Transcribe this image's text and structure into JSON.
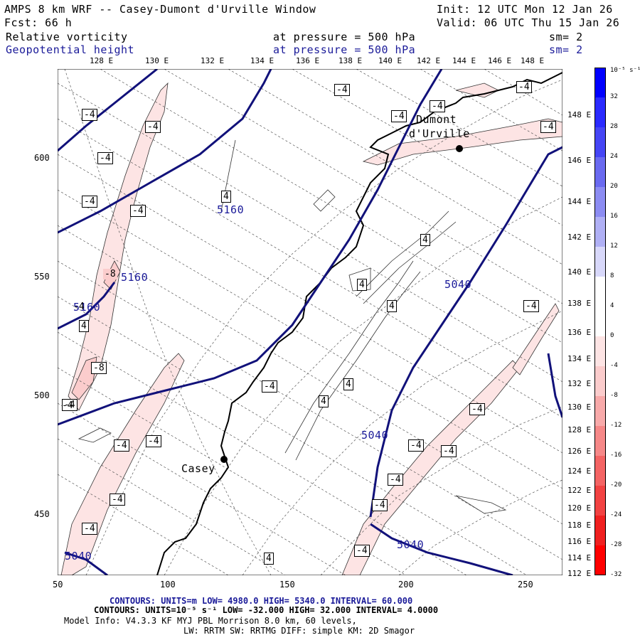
{
  "header": {
    "title": "AMPS 8 km WRF -- Casey-Dumont d'Urville Window",
    "init": "Init: 12 UTC Mon 12 Jan 26",
    "fcst": "Fcst:    66 h",
    "valid": "Valid: 06 UTC Thu 15 Jan 26",
    "field1_name": "Relative vorticity",
    "field1_level": "at pressure =  500 hPa",
    "field1_sm": "sm= 2",
    "field2_name": "Geopotential height",
    "field2_level": "at pressure =  500 hPa",
    "field2_sm": "sm= 2"
  },
  "map": {
    "top_lon_labels": [
      "128 E",
      "130 E",
      "132 E",
      "134 E",
      "136 E",
      "138 E",
      "140 E",
      "142 E",
      "144 E",
      "146 E",
      "148 E"
    ],
    "right_lon_labels": [
      "148 E",
      "146 E",
      "144 E",
      "142 E",
      "140 E",
      "138 E",
      "136 E",
      "134 E",
      "132 E",
      "130 E",
      "128 E",
      "126 E",
      "124 E",
      "122 E",
      "120 E",
      "118 E",
      "116 E",
      "114 E",
      "112 E"
    ],
    "x_ticks": [
      "50",
      "100",
      "150",
      "200",
      "250"
    ],
    "y_ticks": [
      "600",
      "550",
      "500",
      "450"
    ],
    "places": [
      {
        "name": "Dumont",
        "name2": "d'Urville"
      },
      {
        "name": "Casey"
      }
    ],
    "height_labels": [
      "5160",
      "5160",
      "5160",
      "5040",
      "5040",
      "5040",
      "5040"
    ],
    "vort_labels": [
      "-4",
      "-4",
      "-4",
      "-4",
      "-4",
      "-4",
      "-4",
      "-4",
      "-4",
      "-8",
      "-8",
      "-4",
      "-4",
      "-4",
      "-4",
      "-4",
      "-4",
      "-4",
      "-4",
      "-4",
      "-4",
      "-4",
      "-4",
      "-4",
      "-4",
      "-4",
      "-4",
      "4",
      "4",
      "4",
      "4",
      "4",
      "4",
      "4",
      "4"
    ]
  },
  "colorbar": {
    "unit": "10⁻⁵ s⁻¹",
    "labels": [
      "32",
      "28",
      "24",
      "20",
      "16",
      "12",
      "8",
      "4",
      "0",
      "-4",
      "-8",
      "-12",
      "-16",
      "-20",
      "-24",
      "-28",
      "-32"
    ],
    "colors": [
      "#0000ff",
      "#2a2aff",
      "#4545f5",
      "#6a6af0",
      "#8c8cf2",
      "#b0b0f5",
      "#d8d8fa",
      "#ffffff",
      "#ffffff",
      "#fde4e4",
      "#fbcccc",
      "#f8aaaa",
      "#f68888",
      "#f46464",
      "#f24242",
      "#f02020",
      "#ff0000"
    ]
  },
  "footer": {
    "line1": "CONTOURS:  UNITS=m  LOW=  4980.0         HIGH=  5340.0         INTERVAL=   60.000",
    "line2": "CONTOURS:  UNITS=10⁻⁵ s⁻¹   LOW= -32.000        HIGH=  32.000        INTERVAL=   4.0000",
    "line3": "Model Info: V4.3.3   KF      MYJ PBL  Morrison             8.0 km,  60 levels,",
    "line4": "LW: RRTM SW: RRTMG   DIFF: simple KM: 2D Smagor"
  }
}
